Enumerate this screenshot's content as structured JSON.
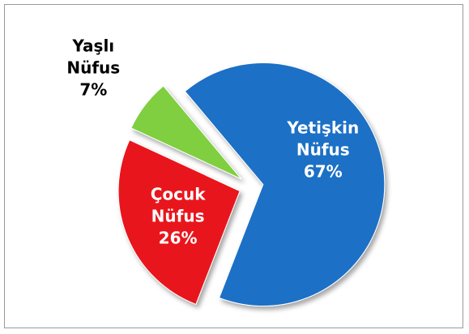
{
  "chart_data": {
    "type": "pie",
    "categories": [
      "Yetişkin Nüfus",
      "Çocuk Nüfus",
      "Yaşlı Nüfus"
    ],
    "values": [
      67,
      26,
      7
    ],
    "value_labels": [
      "67%",
      "26%",
      "7%"
    ],
    "colors": [
      "#1f6fc6",
      "#e8141c",
      "#7fcf3f"
    ]
  }
}
